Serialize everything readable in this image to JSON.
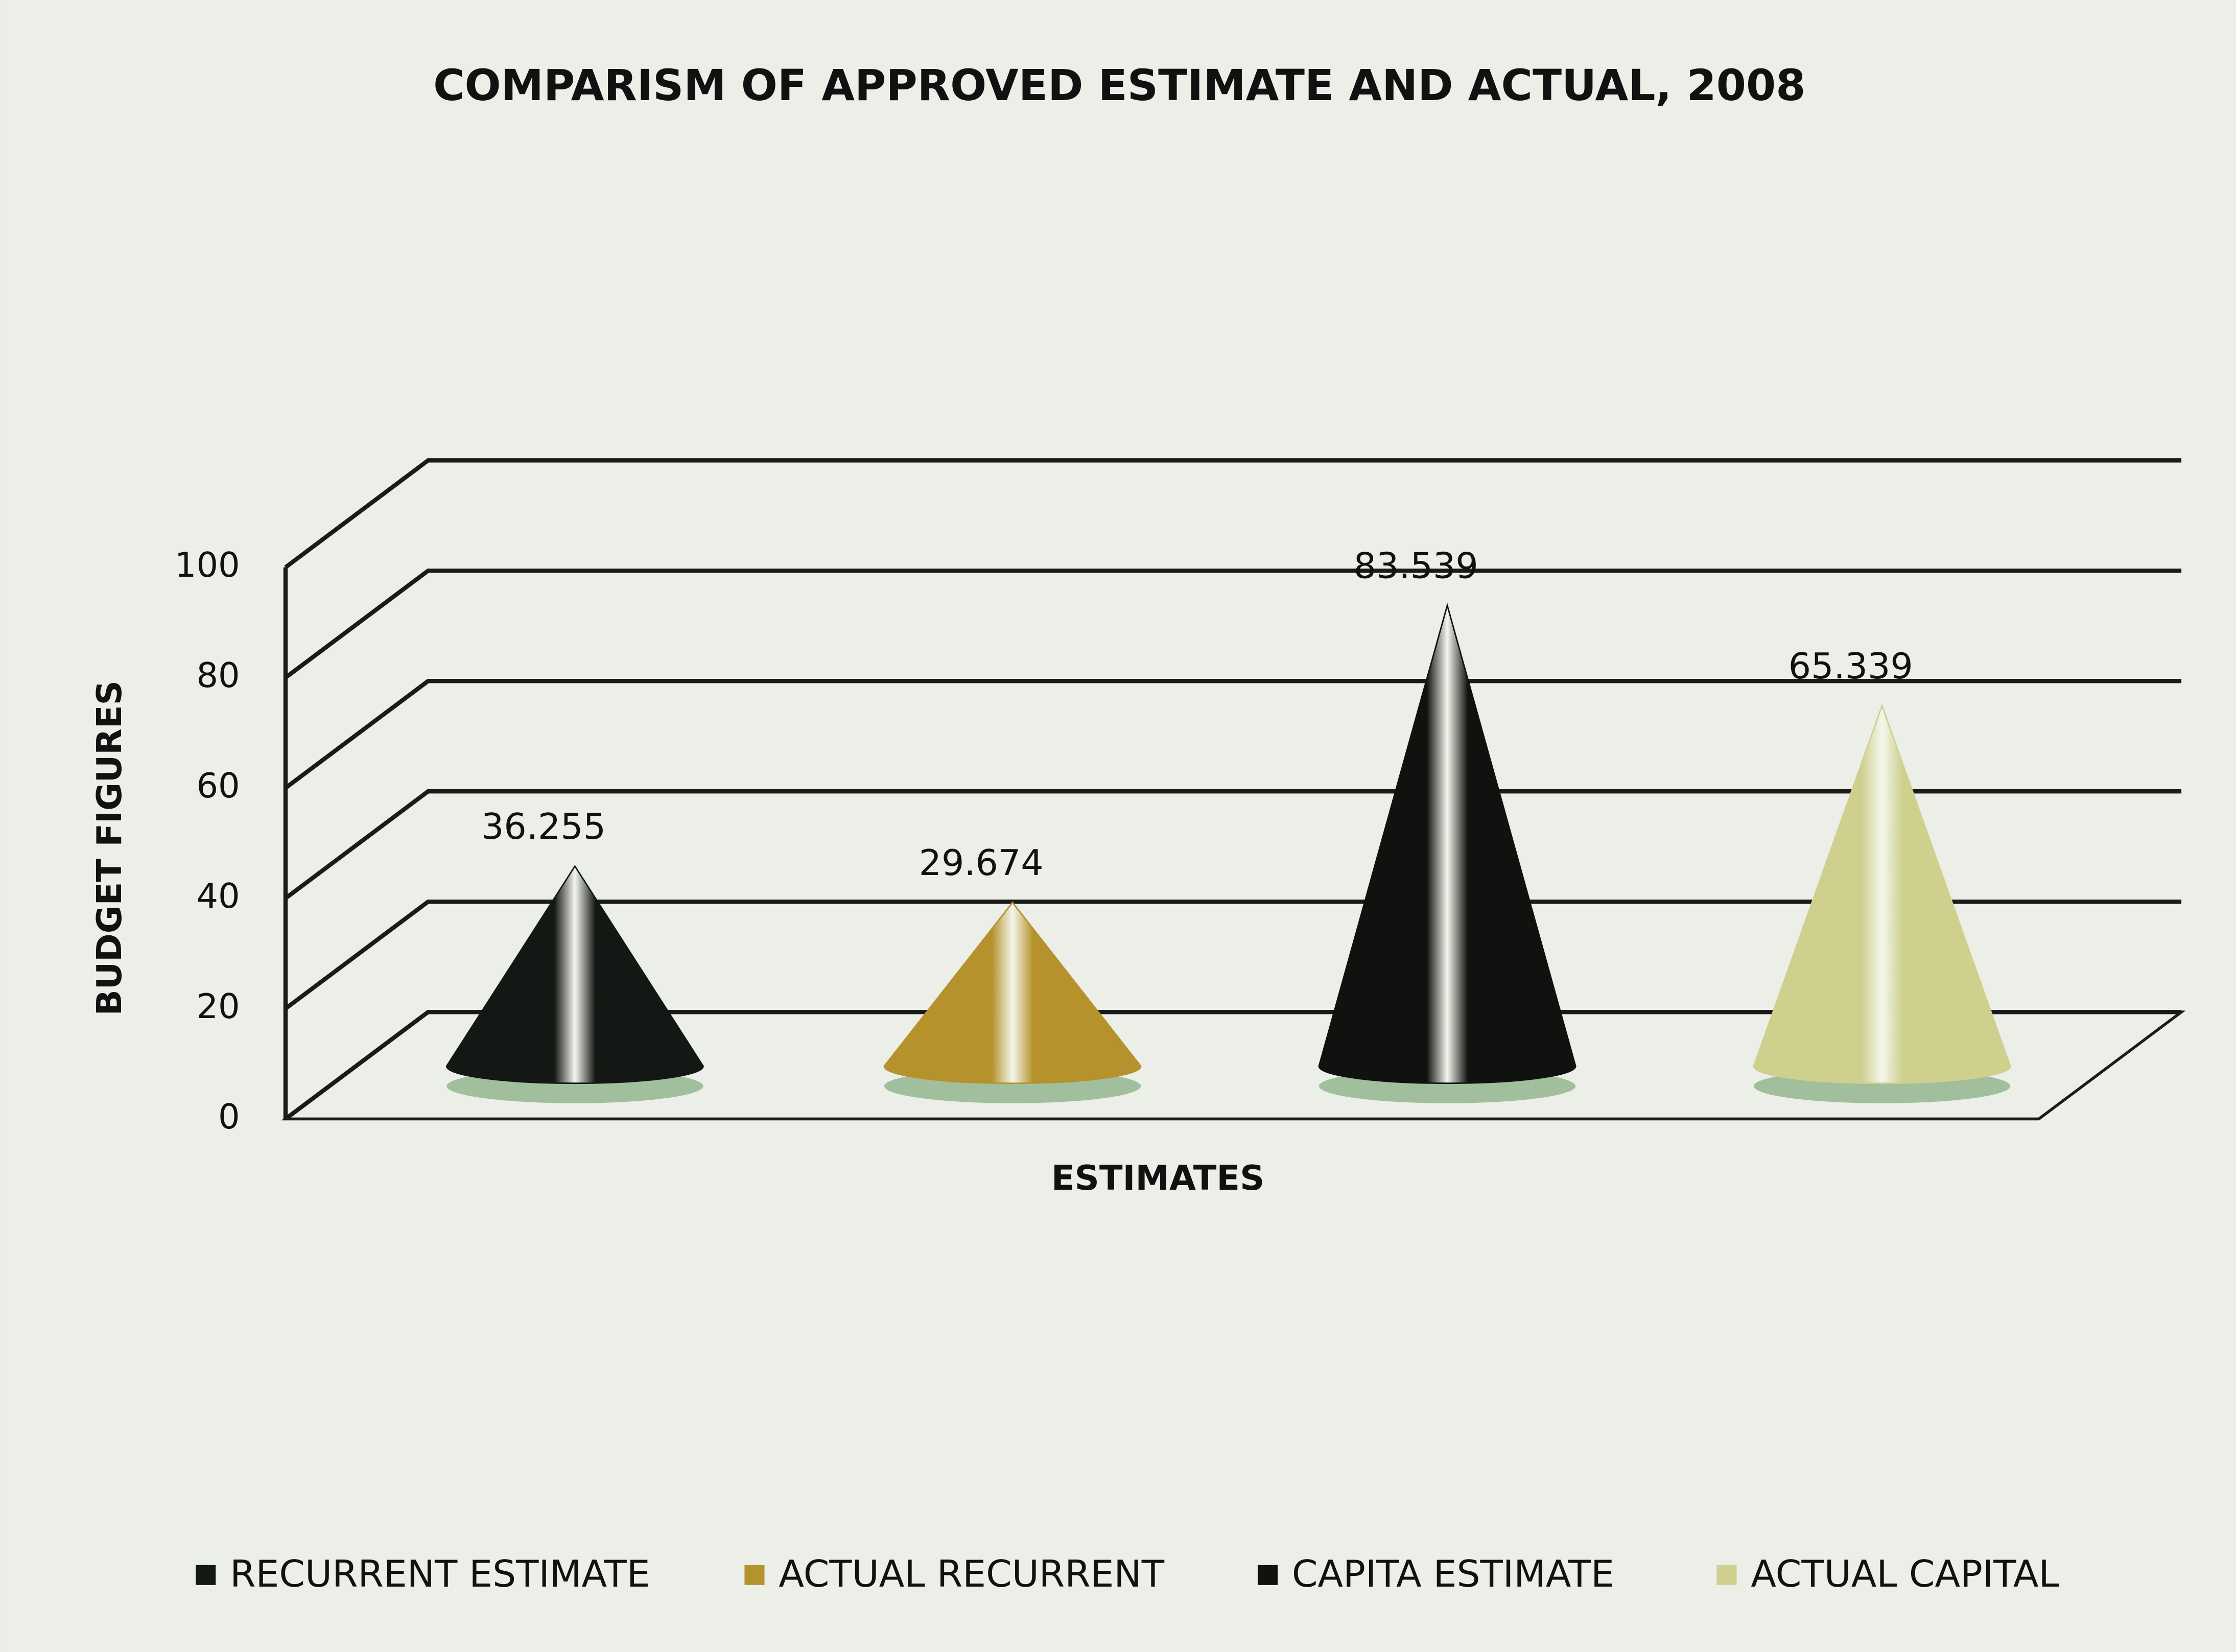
{
  "chart_data": {
    "type": "cone",
    "title": "COMPARISM OF APPROVED ESTIMATE AND ACTUAL, 2008",
    "x_label": "ESTIMATES",
    "y_label": "BUDGET FIGURES",
    "categories": [
      null
    ],
    "series": [
      {
        "name": "RECURRENT ESTIMATE",
        "color": "#141814",
        "values": [
          36.255
        ]
      },
      {
        "name": "ACTUAL RECURRENT",
        "color": "#b5922c",
        "values": [
          29.674
        ]
      },
      {
        "name": "CAPITA ESTIMATE",
        "color": "#101210",
        "values": [
          83.539
        ]
      },
      {
        "name": "ACTUAL CAPITAL",
        "color": "#cfd08e",
        "values": [
          65.339
        ]
      }
    ],
    "ylim": [
      0,
      100
    ],
    "yticks": [
      0,
      20,
      40,
      60,
      80,
      100
    ],
    "grid": true,
    "legend": "bottom"
  }
}
